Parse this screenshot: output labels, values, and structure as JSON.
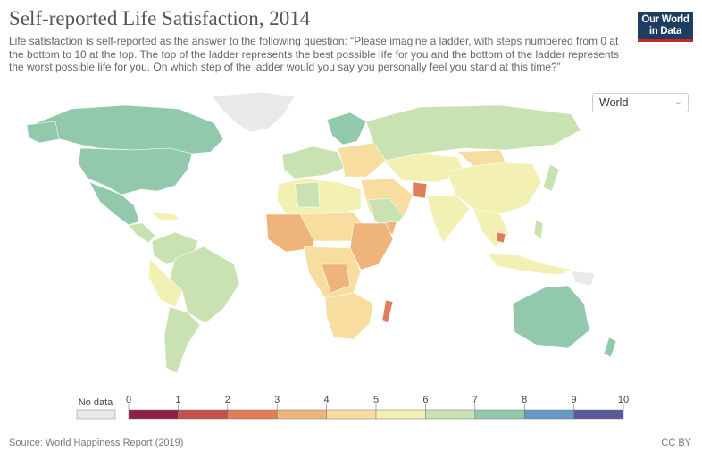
{
  "title": "Self-reported Life Satisfaction, 2014",
  "subtitle": "Life satisfaction is self-reported as the answer to the following question: “Please imagine a ladder, with steps numbered from 0 at the bottom to 10 at the top. The top of the ladder represents the best possible life for you and the bottom of the ladder represents the worst possible life for you. On which step of the ladder would you say you personally feel you stand at this time?”",
  "logo": {
    "line1": "Our World",
    "line2": "in Data"
  },
  "region_select": {
    "value": "World"
  },
  "legend": {
    "no_data_label": "No data",
    "ticks": [
      "0",
      "1",
      "2",
      "3",
      "4",
      "5",
      "6",
      "7",
      "8",
      "9",
      "10"
    ],
    "colors": [
      "#8c2145",
      "#c4504c",
      "#e07e58",
      "#efb47a",
      "#f8dda0",
      "#f2f0b3",
      "#c9e2b2",
      "#92c9ad",
      "#6599c3",
      "#5b5898"
    ],
    "no_data_color": "#e9e9e9"
  },
  "source": "Source: World Happiness Report (2019)",
  "license": "CC BY"
}
